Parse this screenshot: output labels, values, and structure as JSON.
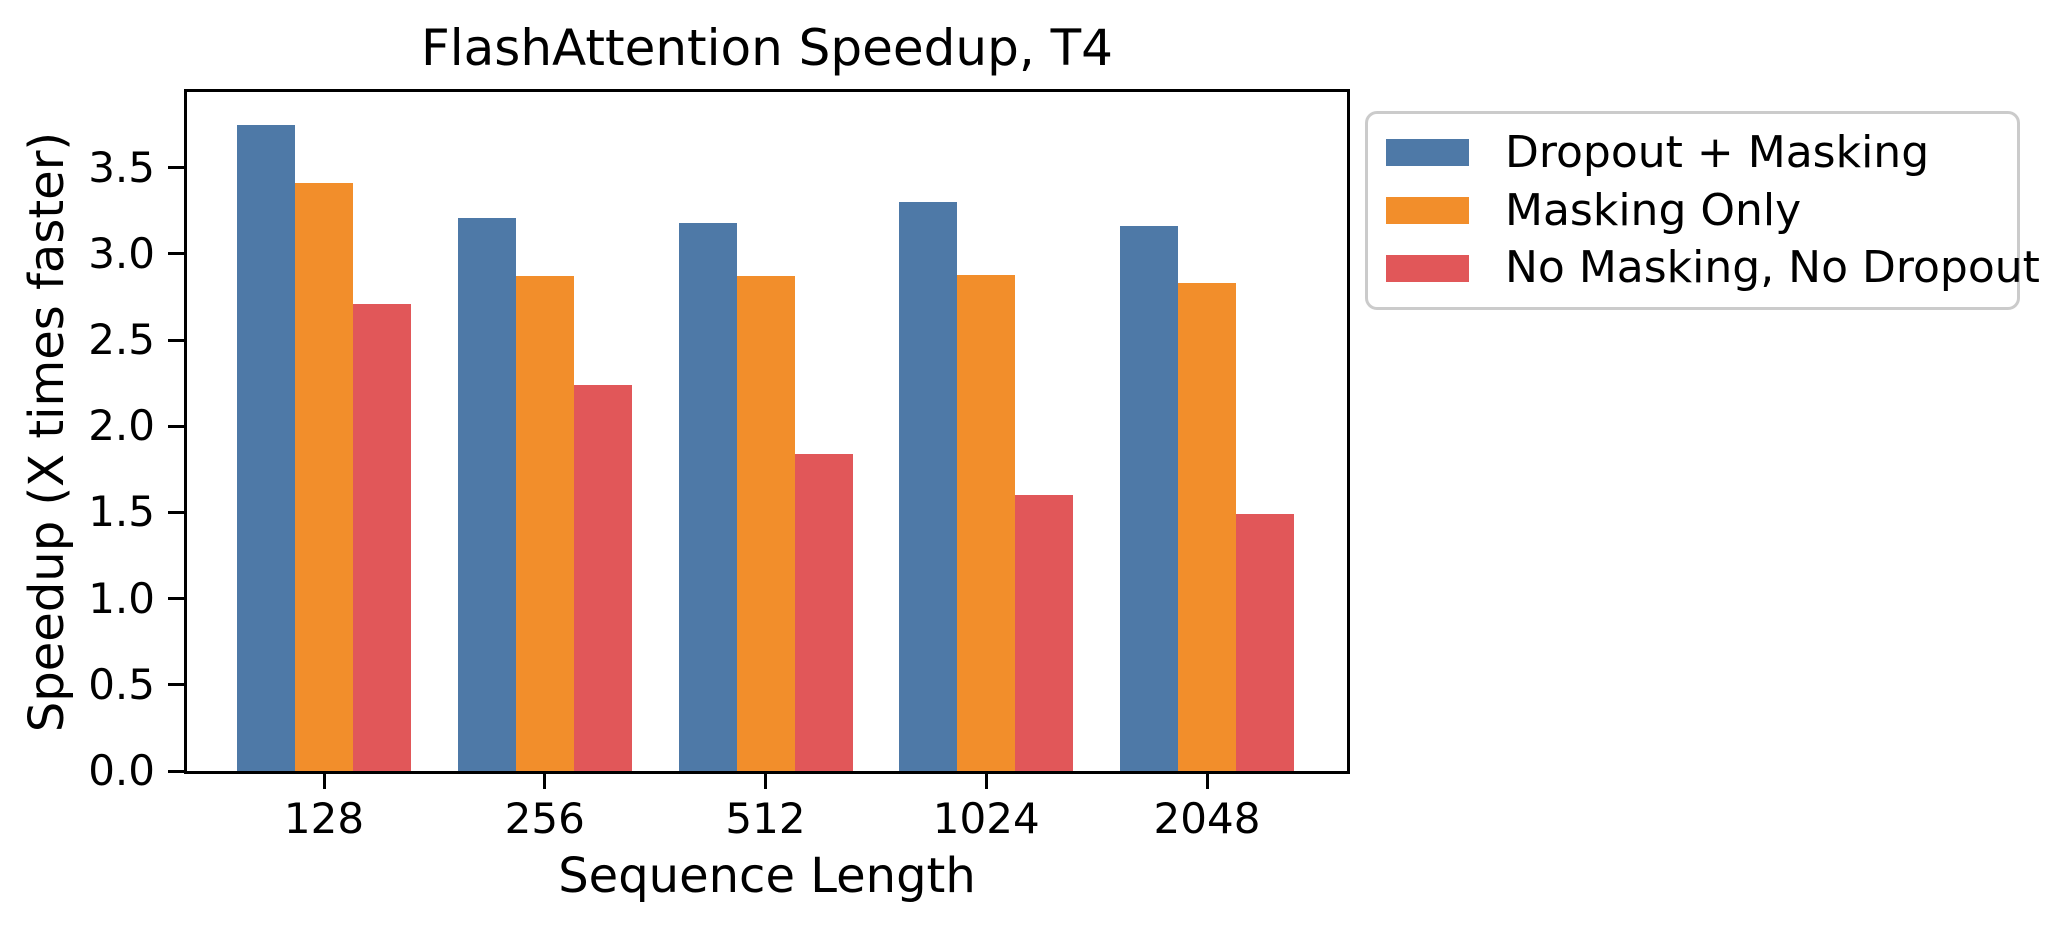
{
  "figure": {
    "background": "#ffffff",
    "text_color": "#000000",
    "axis_color": "#000000",
    "legend_border_color": "#cbcbcb"
  },
  "chart_data": {
    "type": "bar",
    "title": "FlashAttention Speedup, T4",
    "xlabel": "Sequence Length",
    "ylabel": "Speedup (X times faster)",
    "categories": [
      "128",
      "256",
      "512",
      "1024",
      "2048"
    ],
    "series": [
      {
        "name": "Dropout + Masking",
        "color": "#4E79A7",
        "values": [
          3.75,
          3.21,
          3.18,
          3.3,
          3.16
        ]
      },
      {
        "name": "Masking Only",
        "color": "#F28E2B",
        "values": [
          3.41,
          2.87,
          2.87,
          2.88,
          2.83
        ]
      },
      {
        "name": "No Masking, No Dropout",
        "color": "#E15759",
        "values": [
          2.71,
          2.24,
          1.84,
          1.6,
          1.49
        ]
      }
    ],
    "ylim": [
      0,
      3.94
    ],
    "yticks": [
      0.0,
      0.5,
      1.0,
      1.5,
      2.0,
      2.5,
      3.0,
      3.5
    ],
    "ytick_labels": [
      "0.0",
      "0.5",
      "1.0",
      "1.5",
      "2.0",
      "2.5",
      "3.0",
      "3.5"
    ],
    "grid": false,
    "legend_position": "outside-upper-right"
  }
}
